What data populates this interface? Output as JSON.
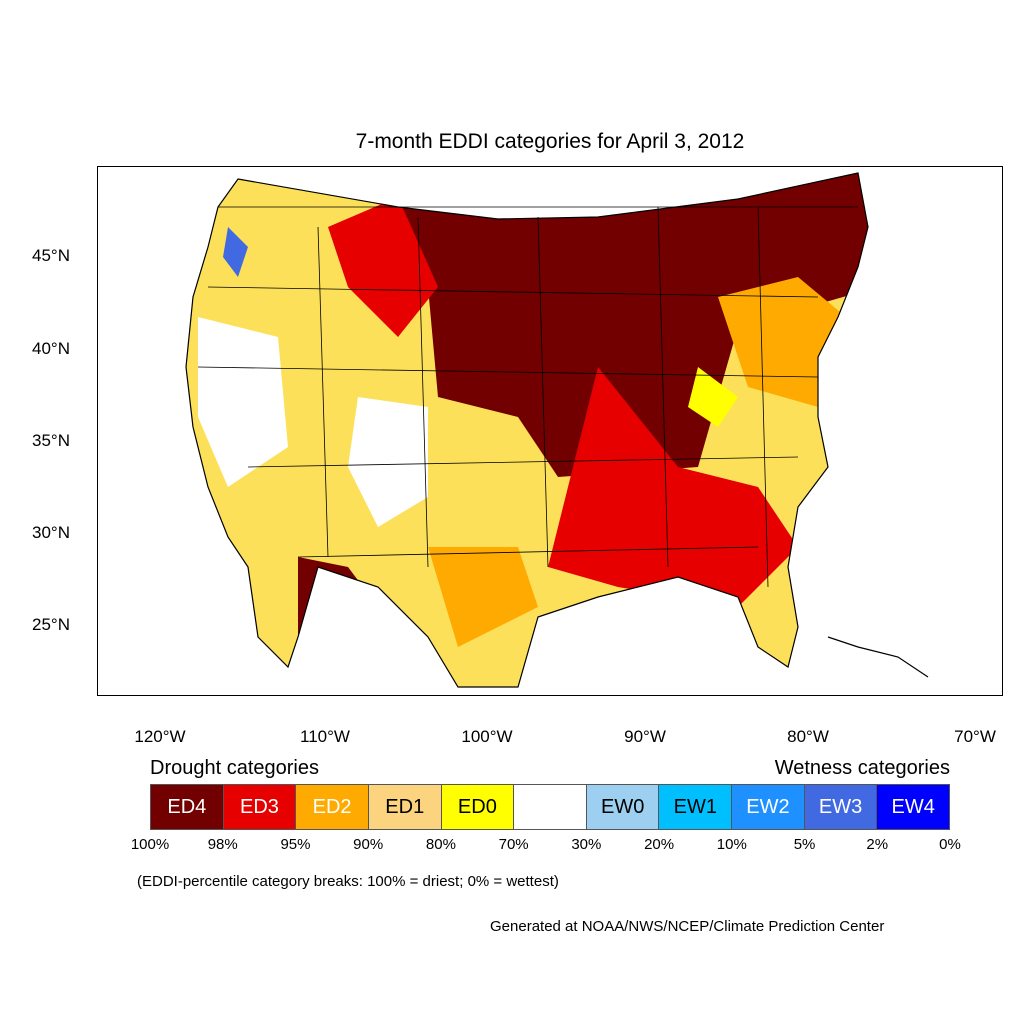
{
  "title": "7-month EDDI categories for April 3, 2012",
  "lat_labels": [
    "45°N",
    "40°N",
    "35°N",
    "30°N",
    "25°N"
  ],
  "lon_labels": [
    "120°W",
    "110°W",
    "100°W",
    "90°W",
    "80°W",
    "70°W"
  ],
  "legend": {
    "drought_heading": "Drought categories",
    "wetness_heading": "Wetness categories",
    "categories": [
      {
        "label": "ED4",
        "color": "#730000",
        "text_color": "#ffffff"
      },
      {
        "label": "ED3",
        "color": "#e60000",
        "text_color": "#ffffff"
      },
      {
        "label": "ED2",
        "color": "#ffaa00",
        "text_color": "#ffffff"
      },
      {
        "label": "ED1",
        "color": "#fcd37f",
        "text_color": "#000000"
      },
      {
        "label": "ED0",
        "color": "#ffff00",
        "text_color": "#000000"
      },
      {
        "label": "",
        "color": "#ffffff",
        "text_color": "#000000"
      },
      {
        "label": "EW0",
        "color": "#9dd0f0",
        "text_color": "#000000"
      },
      {
        "label": "EW1",
        "color": "#00bfff",
        "text_color": "#000000"
      },
      {
        "label": "EW2",
        "color": "#1e90ff",
        "text_color": "#ffffff"
      },
      {
        "label": "EW3",
        "color": "#4169e1",
        "text_color": "#ffffff"
      },
      {
        "label": "EW4",
        "color": "#0000ff",
        "text_color": "#ffffff"
      }
    ],
    "percent_breaks": [
      "100%",
      "98%",
      "95%",
      "90%",
      "80%",
      "70%",
      "30%",
      "20%",
      "10%",
      "5%",
      "2%",
      "0%"
    ]
  },
  "note": "(EDDI-percentile category breaks: 100% = driest; 0% = wettest)",
  "credit": "Generated at NOAA/NWS/NCEP/Climate Prediction Center"
}
